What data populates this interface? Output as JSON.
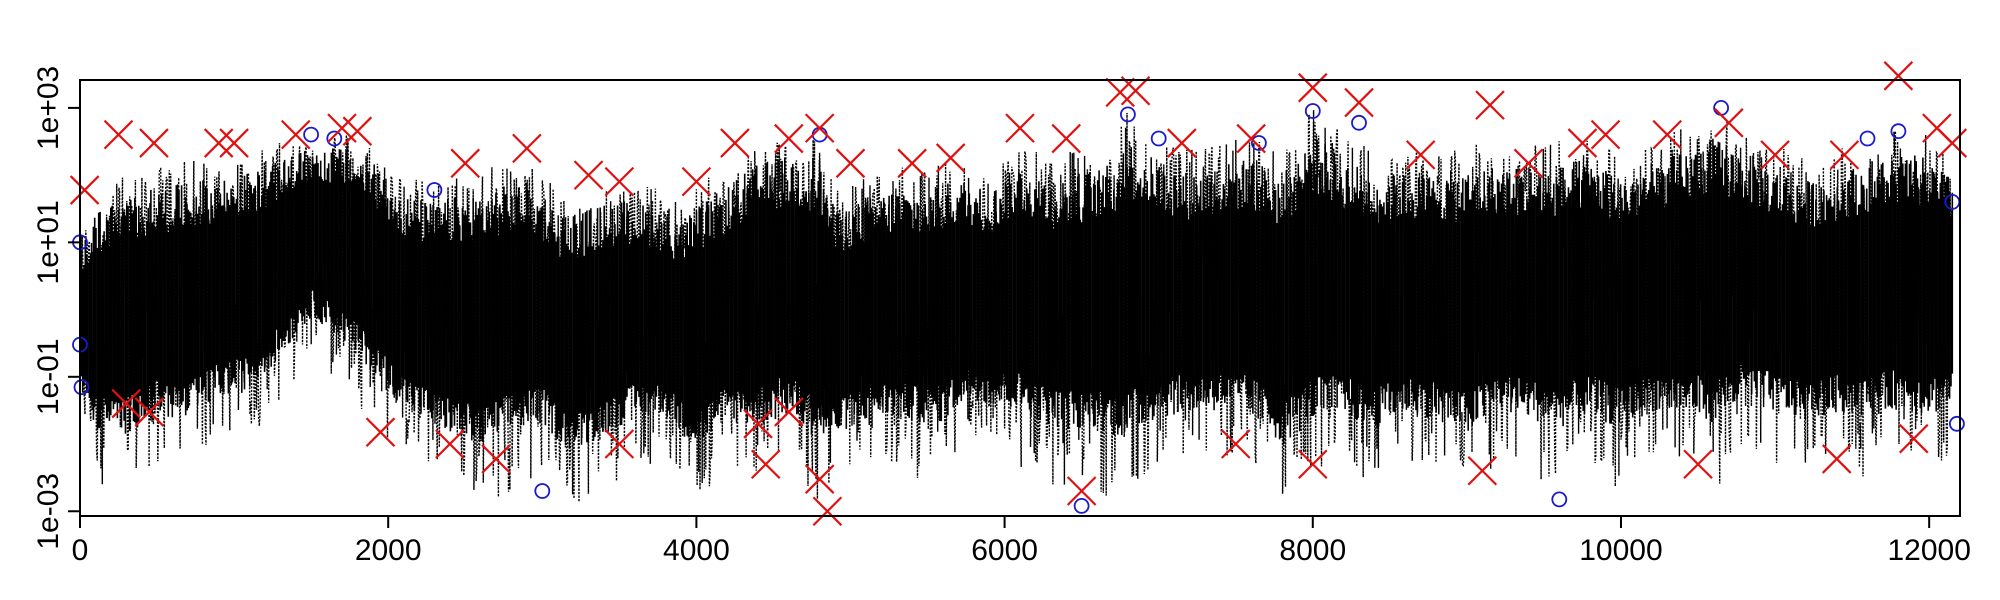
{
  "chart_data": {
    "type": "scatter",
    "title": "",
    "xlabel": "",
    "ylabel": "",
    "x_range": [
      0,
      12200
    ],
    "y_scale": "log10",
    "y_range": [
      0.00085,
      2600
    ],
    "x_ticks": [
      0,
      2000,
      4000,
      6000,
      8000,
      10000,
      12000
    ],
    "x_tick_labels": [
      "0",
      "2000",
      "4000",
      "6000",
      "8000",
      "10000",
      "12000"
    ],
    "y_ticks": [
      0.001,
      0.1,
      10,
      1000
    ],
    "y_tick_labels": [
      "1e-03",
      "1e-01",
      "1e+01",
      "1e+03"
    ],
    "grid": false,
    "legend": "none",
    "colors": {
      "series_line": "#000000",
      "open_circles": "#1a1acc",
      "x_markers": "#e01010"
    },
    "series": [
      {
        "style": "dotted black line",
        "upper_envelope": [
          [
            0,
            12
          ],
          [
            100,
            60
          ],
          [
            250,
            90
          ],
          [
            400,
            120
          ],
          [
            600,
            150
          ],
          [
            800,
            180
          ],
          [
            1000,
            200
          ],
          [
            1200,
            250
          ],
          [
            1400,
            380
          ],
          [
            1500,
            430
          ],
          [
            1700,
            500
          ],
          [
            1900,
            300
          ],
          [
            2100,
            100
          ],
          [
            2300,
            80
          ],
          [
            2500,
            120
          ],
          [
            2700,
            150
          ],
          [
            2900,
            170
          ],
          [
            3100,
            60
          ],
          [
            3300,
            70
          ],
          [
            3500,
            90
          ],
          [
            3700,
            70
          ],
          [
            3900,
            40
          ],
          [
            4000,
            70
          ],
          [
            4200,
            150
          ],
          [
            4400,
            350
          ],
          [
            4600,
            450
          ],
          [
            4800,
            500
          ],
          [
            4900,
            60
          ],
          [
            5100,
            90
          ],
          [
            5300,
            140
          ],
          [
            5500,
            120
          ],
          [
            5700,
            200
          ],
          [
            5900,
            110
          ],
          [
            6100,
            350
          ],
          [
            6300,
            180
          ],
          [
            6500,
            260
          ],
          [
            6700,
            350
          ],
          [
            6800,
            900
          ],
          [
            7000,
            360
          ],
          [
            7200,
            240
          ],
          [
            7400,
            320
          ],
          [
            7600,
            420
          ],
          [
            7800,
            240
          ],
          [
            8000,
            1000
          ],
          [
            8200,
            420
          ],
          [
            8400,
            240
          ],
          [
            8600,
            230
          ],
          [
            8800,
            250
          ],
          [
            9000,
            280
          ],
          [
            9200,
            320
          ],
          [
            9400,
            290
          ],
          [
            9600,
            320
          ],
          [
            9800,
            450
          ],
          [
            10000,
            220
          ],
          [
            10200,
            330
          ],
          [
            10400,
            530
          ],
          [
            10600,
            900
          ],
          [
            10800,
            530
          ],
          [
            11000,
            280
          ],
          [
            11200,
            180
          ],
          [
            11400,
            230
          ],
          [
            11600,
            370
          ],
          [
            11800,
            480
          ],
          [
            12000,
            420
          ],
          [
            12150,
            180
          ]
        ],
        "lower_envelope": [
          [
            0,
            0.02
          ],
          [
            100,
            0.0025
          ],
          [
            300,
            0.002
          ],
          [
            500,
            0.004
          ],
          [
            700,
            0.003
          ],
          [
            900,
            0.008
          ],
          [
            1100,
            0.01
          ],
          [
            1300,
            0.04
          ],
          [
            1500,
            0.2
          ],
          [
            1600,
            0.12
          ],
          [
            1800,
            0.04
          ],
          [
            2000,
            0.01
          ],
          [
            2200,
            0.004
          ],
          [
            2400,
            0.002
          ],
          [
            2600,
            0.001
          ],
          [
            2800,
            0.002
          ],
          [
            3000,
            0.003
          ],
          [
            3200,
            0.001
          ],
          [
            3400,
            0.002
          ],
          [
            3600,
            0.004
          ],
          [
            3800,
            0.005
          ],
          [
            4000,
            0.0012
          ],
          [
            4200,
            0.003
          ],
          [
            4400,
            0.002
          ],
          [
            4600,
            0.003
          ],
          [
            4800,
            0.001
          ],
          [
            5000,
            0.003
          ],
          [
            5200,
            0.004
          ],
          [
            5400,
            0.003
          ],
          [
            5600,
            0.003
          ],
          [
            5800,
            0.008
          ],
          [
            6000,
            0.005
          ],
          [
            6200,
            0.003
          ],
          [
            6400,
            0.002
          ],
          [
            6600,
            0.002
          ],
          [
            6800,
            0.001
          ],
          [
            7000,
            0.003
          ],
          [
            7200,
            0.004
          ],
          [
            7400,
            0.004
          ],
          [
            7600,
            0.003
          ],
          [
            7800,
            0.001
          ],
          [
            8000,
            0.002
          ],
          [
            8200,
            0.003
          ],
          [
            8400,
            0.002
          ],
          [
            8600,
            0.004
          ],
          [
            8800,
            0.003
          ],
          [
            9000,
            0.0015
          ],
          [
            9200,
            0.004
          ],
          [
            9400,
            0.003
          ],
          [
            9600,
            0.002
          ],
          [
            9800,
            0.003
          ],
          [
            10000,
            0.002
          ],
          [
            10200,
            0.004
          ],
          [
            10400,
            0.003
          ],
          [
            10600,
            0.002
          ],
          [
            10800,
            0.005
          ],
          [
            11000,
            0.004
          ],
          [
            11200,
            0.003
          ],
          [
            11400,
            0.004
          ],
          [
            11600,
            0.003
          ],
          [
            11800,
            0.004
          ],
          [
            12000,
            0.003
          ],
          [
            12150,
            0.006
          ]
        ]
      },
      {
        "style": "blue open circles",
        "points": [
          [
            0,
            10
          ],
          [
            0,
            0.3
          ],
          [
            10,
            0.07
          ],
          [
            12150,
            40
          ],
          [
            12180,
            0.02
          ],
          [
            1500,
            400
          ],
          [
            4800,
            400
          ],
          [
            6800,
            800
          ],
          [
            7000,
            350
          ],
          [
            8000,
            900
          ],
          [
            8300,
            600
          ],
          [
            10650,
            1000
          ],
          [
            11800,
            450
          ],
          [
            6500,
            0.0012
          ],
          [
            3000,
            0.002
          ],
          [
            9600,
            0.0015
          ],
          [
            1650,
            350
          ],
          [
            2300,
            60
          ],
          [
            7650,
            300
          ],
          [
            11600,
            350
          ]
        ]
      },
      {
        "style": "red X markers (extremes)",
        "points": [
          [
            30,
            60
          ],
          [
            250,
            400
          ],
          [
            480,
            300
          ],
          [
            900,
            300
          ],
          [
            1000,
            300
          ],
          [
            1400,
            400
          ],
          [
            1700,
            500
          ],
          [
            1800,
            450
          ],
          [
            2500,
            150
          ],
          [
            2900,
            250
          ],
          [
            3300,
            100
          ],
          [
            3500,
            80
          ],
          [
            4000,
            80
          ],
          [
            4250,
            300
          ],
          [
            4600,
            350
          ],
          [
            4800,
            500
          ],
          [
            5000,
            150
          ],
          [
            5400,
            150
          ],
          [
            5650,
            180
          ],
          [
            6100,
            500
          ],
          [
            6400,
            350
          ],
          [
            6750,
            1700
          ],
          [
            6850,
            1800
          ],
          [
            7150,
            300
          ],
          [
            7600,
            350
          ],
          [
            8000,
            2000
          ],
          [
            8300,
            1200
          ],
          [
            8700,
            200
          ],
          [
            9150,
            1100
          ],
          [
            9400,
            150
          ],
          [
            9750,
            300
          ],
          [
            9900,
            400
          ],
          [
            10300,
            400
          ],
          [
            10700,
            600
          ],
          [
            11000,
            200
          ],
          [
            11450,
            200
          ],
          [
            11800,
            3000
          ],
          [
            12050,
            500
          ],
          [
            12150,
            300
          ],
          [
            300,
            0.04
          ],
          [
            450,
            0.03
          ],
          [
            1950,
            0.015
          ],
          [
            2400,
            0.01
          ],
          [
            3500,
            0.01
          ],
          [
            4400,
            0.02
          ],
          [
            4450,
            0.005
          ],
          [
            4600,
            0.03
          ],
          [
            4850,
            0.001
          ],
          [
            6500,
            0.002
          ],
          [
            7500,
            0.01
          ],
          [
            8000,
            0.005
          ],
          [
            9100,
            0.004
          ],
          [
            10500,
            0.005
          ],
          [
            11400,
            0.006
          ],
          [
            11900,
            0.012
          ],
          [
            4800,
            0.003
          ],
          [
            2700,
            0.006
          ]
        ]
      }
    ]
  }
}
